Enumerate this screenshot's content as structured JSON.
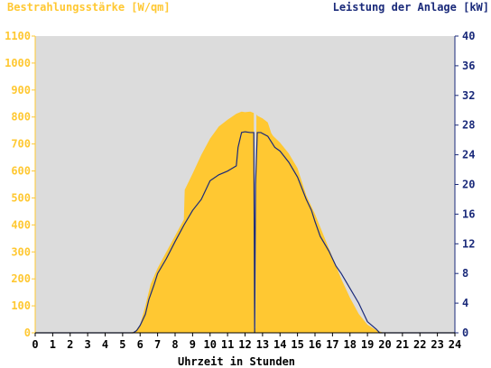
{
  "chart_data": {
    "type": "area",
    "y_left_label": "Bestrahlungsstärke [W/qm]",
    "y_right_label": "Leistung der Anlage [kW]",
    "xlabel": "Uhrzeit in Stunden",
    "xlim": [
      0,
      24
    ],
    "ylim_left": [
      0,
      1100
    ],
    "ylim_right": [
      0,
      40
    ],
    "x_ticks": [
      "0",
      "1",
      "2",
      "3",
      "4",
      "5",
      "6",
      "7",
      "8",
      "9",
      "10",
      "11",
      "12",
      "13",
      "14",
      "15",
      "16",
      "17",
      "18",
      "19",
      "20",
      "21",
      "22",
      "23",
      "24"
    ],
    "y_left_ticks": [
      "0",
      "100",
      "200",
      "300",
      "400",
      "500",
      "600",
      "700",
      "800",
      "900",
      "1000",
      "1100"
    ],
    "y_right_ticks": [
      "0",
      "4",
      "8",
      "12",
      "16",
      "20",
      "24",
      "28",
      "32",
      "36",
      "40"
    ],
    "grid": false,
    "colors": {
      "irradiance": "#ffc832",
      "power": "#1a2a7a",
      "plot_background": "#dcdcdc"
    },
    "series": [
      {
        "name": "Bestrahlungsstärke [W/qm]",
        "axis": "left",
        "x": [
          0,
          5.4,
          5.7,
          6.0,
          6.3,
          6.6,
          7.0,
          7.5,
          8.0,
          8.5,
          8.55,
          9.0,
          9.5,
          10.0,
          10.5,
          11.0,
          11.5,
          11.8,
          12.0,
          12.3,
          12.5,
          12.55,
          12.6,
          12.65,
          12.7,
          13.0,
          13.3,
          13.5,
          13.6,
          14.0,
          14.5,
          15.0,
          15.5,
          16.0,
          16.5,
          17.0,
          17.5,
          18.0,
          18.5,
          19.0,
          19.5,
          19.8,
          20.0,
          24
        ],
        "y": [
          0,
          0,
          5,
          30,
          100,
          180,
          240,
          300,
          360,
          420,
          530,
          590,
          660,
          720,
          765,
          790,
          812,
          820,
          818,
          820,
          815,
          20,
          15,
          810,
          805,
          795,
          780,
          740,
          730,
          705,
          665,
          610,
          510,
          440,
          360,
          280,
          200,
          130,
          70,
          30,
          10,
          3,
          0,
          0
        ]
      },
      {
        "name": "Leistung der Anlage [kW]",
        "axis": "right",
        "x": [
          0,
          5.6,
          5.8,
          6.0,
          6.3,
          6.5,
          6.8,
          7.0,
          7.5,
          8.0,
          8.5,
          9.0,
          9.5,
          10.0,
          10.5,
          11.0,
          11.5,
          11.6,
          11.8,
          12.0,
          12.3,
          12.5,
          12.55,
          12.6,
          12.7,
          12.9,
          13.3,
          13.7,
          14.0,
          14.5,
          15.0,
          15.5,
          15.8,
          16.0,
          16.3,
          16.8,
          17.2,
          17.5,
          18.0,
          18.5,
          19.0,
          19.5,
          19.7,
          20.0,
          24
        ],
        "y": [
          0,
          0,
          0.3,
          1,
          2.5,
          4.5,
          6.5,
          8,
          10,
          12.3,
          14.5,
          16.5,
          18,
          20.5,
          21.3,
          21.8,
          22.5,
          25,
          27,
          27.1,
          27,
          27,
          0,
          20,
          27,
          27,
          26.5,
          25,
          24.5,
          23,
          21,
          18,
          16.5,
          15,
          13,
          11,
          9,
          8,
          6,
          4,
          1.5,
          0.5,
          0,
          0,
          0
        ]
      }
    ]
  }
}
